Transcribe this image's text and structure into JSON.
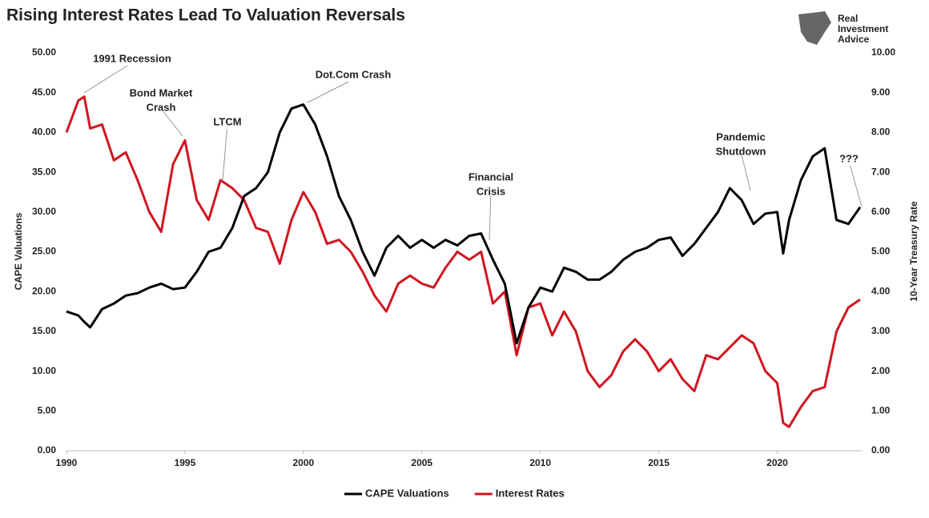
{
  "logo": [
    "Real",
    "Investment",
    "Advice"
  ],
  "chart_data": {
    "type": "line",
    "title": "Rising Interest Rates Lead To Valuation Reversals",
    "y_label": "CAPE Valuations",
    "y2_label": "10-Year Treasury Rate",
    "x": [
      1990,
      1990.5,
      1990.75,
      1991,
      1991.5,
      1992,
      1992.5,
      1993,
      1993.5,
      1994,
      1994.5,
      1995,
      1995.5,
      1996,
      1996.5,
      1997,
      1997.5,
      1998,
      1998.5,
      1999,
      1999.5,
      2000,
      2000.5,
      2001,
      2001.5,
      2002,
      2002.5,
      2003,
      2003.5,
      2004,
      2004.5,
      2005,
      2005.5,
      2006,
      2006.5,
      2007,
      2007.5,
      2008,
      2008.5,
      2009,
      2009.5,
      2010,
      2010.5,
      2011,
      2011.5,
      2012,
      2012.5,
      2013,
      2013.5,
      2014,
      2014.5,
      2015,
      2015.5,
      2016,
      2016.5,
      2017,
      2017.5,
      2018,
      2018.5,
      2019,
      2019.5,
      2020,
      2020.25,
      2020.5,
      2021,
      2021.5,
      2022,
      2022.5,
      2023,
      2023.5
    ],
    "series": [
      {
        "name": "CAPE Valuations",
        "color": "#000000",
        "axis": "y",
        "values": [
          17.5,
          17,
          16.2,
          15.5,
          17.8,
          18.5,
          19.5,
          19.8,
          20.5,
          21,
          20.3,
          20.5,
          22.5,
          25,
          25.5,
          28,
          32,
          33,
          35,
          40,
          43,
          43.5,
          41,
          37,
          32,
          29,
          25,
          22,
          25.5,
          27,
          25.5,
          26.5,
          25.5,
          26.5,
          25.8,
          27,
          27.3,
          24,
          21,
          13.5,
          18,
          20.5,
          20,
          23,
          22.5,
          21.5,
          21.5,
          22.5,
          24,
          25,
          25.5,
          26.5,
          26.8,
          24.5,
          26,
          28,
          30,
          33,
          31.5,
          28.5,
          29.8,
          30,
          24.8,
          29,
          34,
          37,
          38,
          29,
          28.5,
          30.6
        ]
      },
      {
        "name": "Interest Rates",
        "color": "#d0161f",
        "axis": "y2",
        "values": [
          8.0,
          8.8,
          8.9,
          8.1,
          8.2,
          7.3,
          7.5,
          6.8,
          6.0,
          5.5,
          7.2,
          7.8,
          6.3,
          5.8,
          6.8,
          6.6,
          6.3,
          5.6,
          5.5,
          4.7,
          5.8,
          6.5,
          6.0,
          5.2,
          5.3,
          5.0,
          4.5,
          3.9,
          3.5,
          4.2,
          4.4,
          4.2,
          4.1,
          4.6,
          5.0,
          4.8,
          5.0,
          3.7,
          4.0,
          2.4,
          3.6,
          3.7,
          2.9,
          3.5,
          3.0,
          2.0,
          1.6,
          1.9,
          2.5,
          2.8,
          2.5,
          2.0,
          2.3,
          1.8,
          1.5,
          2.4,
          2.3,
          2.6,
          2.9,
          2.7,
          2.0,
          1.7,
          0.7,
          0.6,
          1.1,
          1.5,
          1.6,
          3.0,
          3.6,
          3.8
        ]
      }
    ],
    "xlim": [
      1990,
      2023.6
    ],
    "xticks": [
      1990,
      1995,
      2000,
      2005,
      2010,
      2015,
      2020
    ],
    "ylim": [
      0,
      50
    ],
    "yticks": [
      {
        "value": 0,
        "label": "0.00"
      },
      {
        "value": 5,
        "label": "5.00"
      },
      {
        "value": 10,
        "label": "10.00"
      },
      {
        "value": 15,
        "label": "15.00"
      },
      {
        "value": 20,
        "label": "20.00"
      },
      {
        "value": 25,
        "label": "25.00"
      },
      {
        "value": 30,
        "label": "30.00"
      },
      {
        "value": 35,
        "label": "35.00"
      },
      {
        "value": 40,
        "label": "40.00"
      },
      {
        "value": 45,
        "label": "45.00"
      },
      {
        "value": 50,
        "label": "50.00"
      }
    ],
    "y2lim": [
      0,
      10
    ],
    "y2ticks": [
      {
        "value": 0,
        "label": "0.00"
      },
      {
        "value": 1,
        "label": "1.00"
      },
      {
        "value": 2,
        "label": "2.00"
      },
      {
        "value": 3,
        "label": "3.00"
      },
      {
        "value": 4,
        "label": "4.00"
      },
      {
        "value": 5,
        "label": "5.00"
      },
      {
        "value": 6,
        "label": "6.00"
      },
      {
        "value": 7,
        "label": "7.00"
      },
      {
        "value": 8,
        "label": "8.00"
      },
      {
        "value": 9,
        "label": "9.00"
      },
      {
        "value": 10,
        "label": "10.00"
      }
    ],
    "annotations": [
      {
        "lines": [
          "1991 Recession"
        ]
      },
      {
        "lines": [
          "Bond Market",
          "Crash"
        ]
      },
      {
        "lines": [
          "LTCM"
        ]
      },
      {
        "lines": [
          "Dot.Com Crash"
        ]
      },
      {
        "lines": [
          "Financial",
          "Crisis"
        ]
      },
      {
        "lines": [
          "Pandemic",
          "Shutdown"
        ]
      },
      {
        "lines": [
          "???"
        ],
        "color": "#e00000"
      }
    ],
    "legend": "bottom"
  }
}
